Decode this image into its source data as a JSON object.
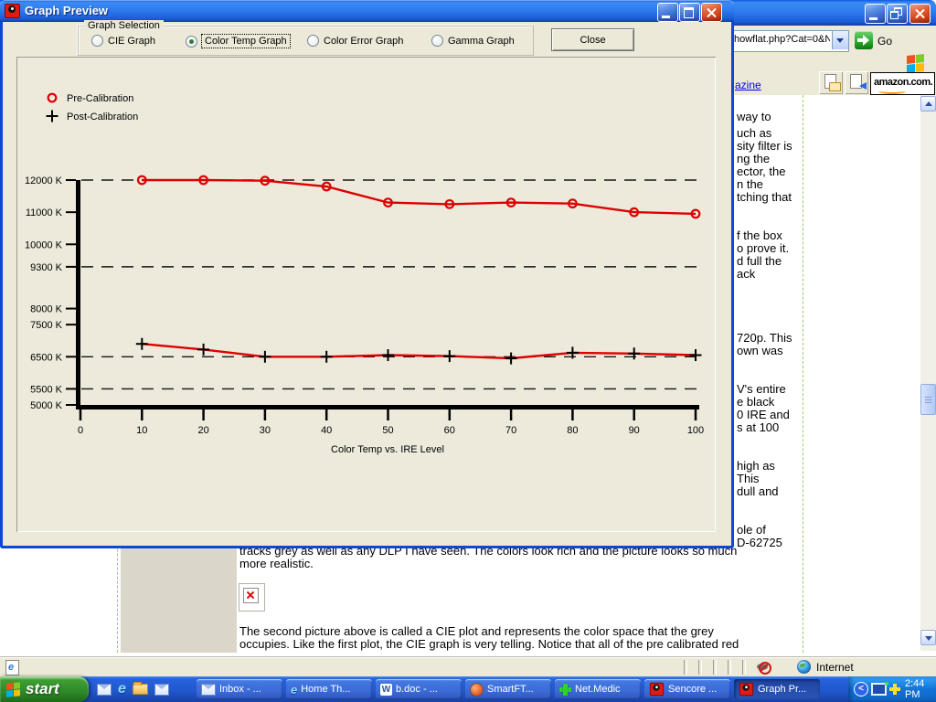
{
  "dialog": {
    "title": "Graph Preview",
    "graph_selection": {
      "label": "Graph Selection",
      "options": [
        {
          "label": "CIE Graph",
          "selected": false
        },
        {
          "label": "Color Temp Graph",
          "selected": true
        },
        {
          "label": "Color Error Graph",
          "selected": false
        },
        {
          "label": "Gamma Graph",
          "selected": false
        }
      ]
    },
    "close_label": "Close"
  },
  "chart_data": {
    "type": "line",
    "title": "",
    "xlabel": "Color Temp vs. IRE Level",
    "ylabel": "",
    "xlim": [
      0,
      100
    ],
    "ylim": [
      5000,
      12300
    ],
    "grid": "dashed-horizontal",
    "legend_position": "top-left",
    "x": [
      10,
      20,
      30,
      40,
      50,
      60,
      70,
      80,
      90,
      100
    ],
    "x_ticks": [
      0,
      10,
      20,
      30,
      40,
      50,
      60,
      70,
      80,
      90,
      100
    ],
    "y_ticks": [
      {
        "value": 12000,
        "label": "12000 K",
        "dashed": true
      },
      {
        "value": 11000,
        "label": "11000 K",
        "dashed": false
      },
      {
        "value": 10000,
        "label": "10000 K",
        "dashed": false
      },
      {
        "value": 9300,
        "label": "9300 K",
        "dashed": true
      },
      {
        "value": 8000,
        "label": "8000 K",
        "dashed": false
      },
      {
        "value": 7500,
        "label": "7500 K",
        "dashed": false
      },
      {
        "value": 6500,
        "label": "6500 K",
        "dashed": true
      },
      {
        "value": 5500,
        "label": "5500 K",
        "dashed": true
      },
      {
        "value": 5000,
        "label": "5000 K",
        "dashed": false
      }
    ],
    "series": [
      {
        "name": "Pre-Calibration",
        "marker": "circle",
        "marker_color": "#dd0000",
        "line_color": "#dd0000",
        "values": [
          12000,
          12000,
          11980,
          11800,
          11300,
          11250,
          11300,
          11270,
          11000,
          10950
        ]
      },
      {
        "name": "Post-Calibration",
        "marker": "plus",
        "marker_color": "#000000",
        "line_color": "#dd0000",
        "values": [
          6900,
          6725,
          6500,
          6500,
          6550,
          6520,
          6450,
          6625,
          6600,
          6550
        ]
      }
    ]
  },
  "browser": {
    "address_value": "howflat.php?Cat=0&N",
    "go_label": "Go",
    "link_fragment": "azine",
    "amazon_label": "amazon.com.",
    "right_text_fragments": [
      "way to",
      "uch as",
      "sity filter is",
      "ng the",
      "ector, the",
      "n the",
      "tching that",
      "f the box",
      "o prove it.",
      "d full the",
      "ack",
      "720p. This",
      "own was",
      "V's entire",
      "e black",
      "0 IRE and",
      "s at 100",
      "high as",
      "This",
      "dull and",
      "ole of",
      "D-62725"
    ],
    "paragraph1": [
      "tracks grey as well as any DLP I have seen. The colors look rich and the picture looks so much",
      "more realistic."
    ],
    "paragraph2": [
      "The second picture above is called a CIE plot and represents the color space that the grey",
      "occupies. Like the first plot, the CIE graph is very telling. Notice that all of the pre calibrated red"
    ],
    "status_right": "Internet"
  },
  "taskbar": {
    "start_label": "start",
    "buttons": [
      {
        "label": "Inbox - ...",
        "icon": "mail-icon"
      },
      {
        "label": "Home Th...",
        "icon": "ie-icon"
      },
      {
        "label": "b.doc - ...",
        "icon": "word-icon"
      },
      {
        "label": "SmartFT...",
        "icon": "smartftp-icon"
      },
      {
        "label": "Net.Medic",
        "icon": "netmedic-cross-icon"
      },
      {
        "label": "Sencore ...",
        "icon": "sencore-icon"
      },
      {
        "label": "Graph Pr...",
        "icon": "sencore-icon",
        "active": true
      }
    ],
    "clock": "2:44 PM"
  },
  "icons": {
    "ie": "e",
    "word": "W",
    "tray_chevron": "<"
  }
}
